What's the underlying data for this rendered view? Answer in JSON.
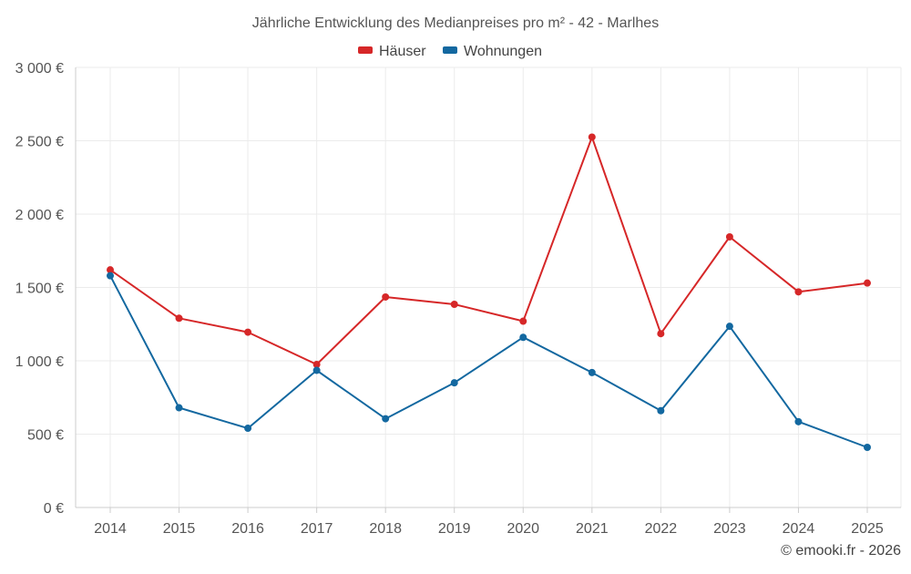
{
  "chart_data": {
    "type": "line",
    "title": "Jährliche Entwicklung des Medianpreises pro m² - 42 - Marlhes",
    "xlabel": "",
    "ylabel": "",
    "categories": [
      "2014",
      "2015",
      "2016",
      "2017",
      "2018",
      "2019",
      "2020",
      "2021",
      "2022",
      "2023",
      "2024",
      "2025"
    ],
    "ylim": [
      0,
      3000
    ],
    "yticks": [
      0,
      500,
      1000,
      1500,
      2000,
      2500,
      3000
    ],
    "ytick_labels": [
      "0 €",
      "500 €",
      "1 000 €",
      "1 500 €",
      "2 000 €",
      "2 500 €",
      "3 000 €"
    ],
    "grid": true,
    "legend_position": "top-center",
    "series": [
      {
        "name": "Häuser",
        "color": "#d62728",
        "values": [
          1620,
          1290,
          1195,
          975,
          1435,
          1385,
          1270,
          2525,
          1185,
          1845,
          1470,
          1530
        ]
      },
      {
        "name": "Wohnungen",
        "color": "#1368a0",
        "values": [
          1580,
          680,
          540,
          935,
          605,
          850,
          1160,
          920,
          660,
          1235,
          585,
          410
        ]
      }
    ],
    "credit": "© emooki.fr - 2026"
  }
}
